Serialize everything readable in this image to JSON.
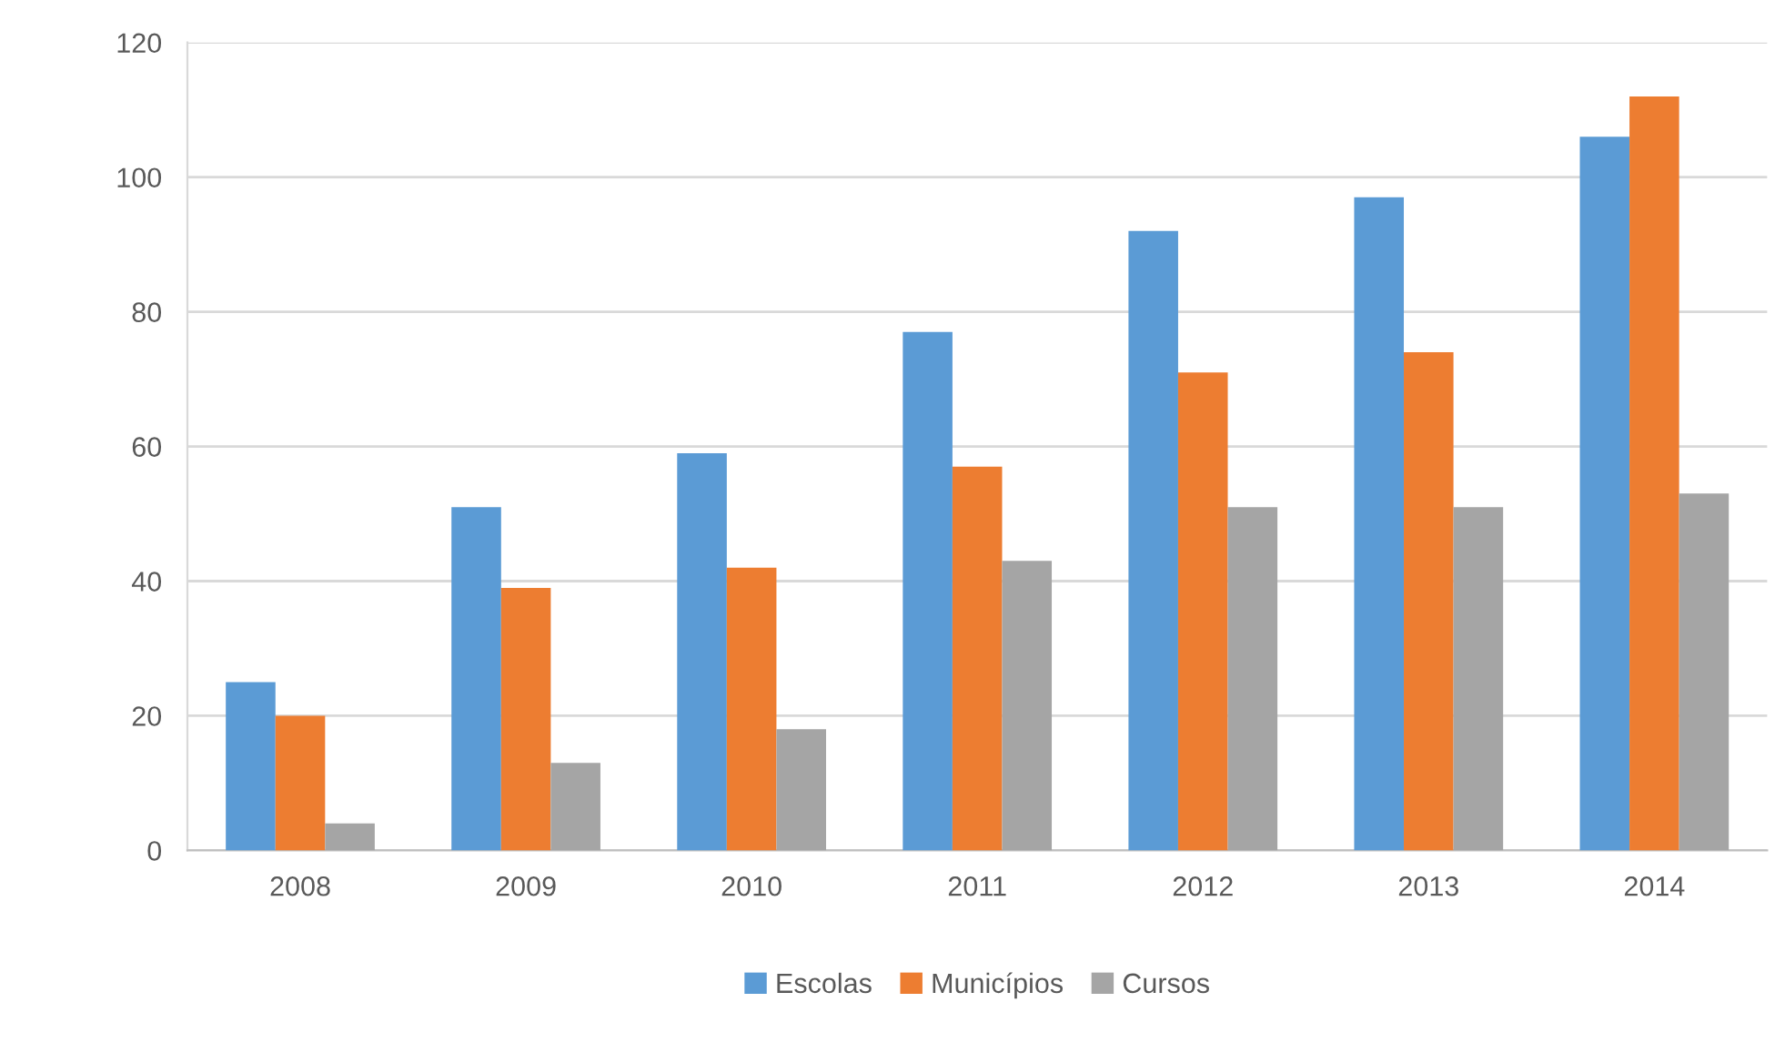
{
  "chart_data": {
    "type": "bar",
    "categories": [
      "2008",
      "2009",
      "2010",
      "2011",
      "2012",
      "2013",
      "2014"
    ],
    "series": [
      {
        "name": "Escolas",
        "color": "#5b9bd5",
        "values": [
          25,
          51,
          59,
          77,
          92,
          97,
          106
        ]
      },
      {
        "name": "Municípios",
        "color": "#ed7d31",
        "values": [
          20,
          39,
          42,
          57,
          71,
          74,
          112
        ]
      },
      {
        "name": "Cursos",
        "color": "#a5a5a5",
        "values": [
          4,
          13,
          18,
          43,
          51,
          51,
          53
        ]
      }
    ],
    "ylim": [
      0,
      120
    ],
    "yticks": [
      0,
      20,
      40,
      60,
      80,
      100,
      120
    ],
    "grid": "y",
    "legend": "bottom"
  }
}
